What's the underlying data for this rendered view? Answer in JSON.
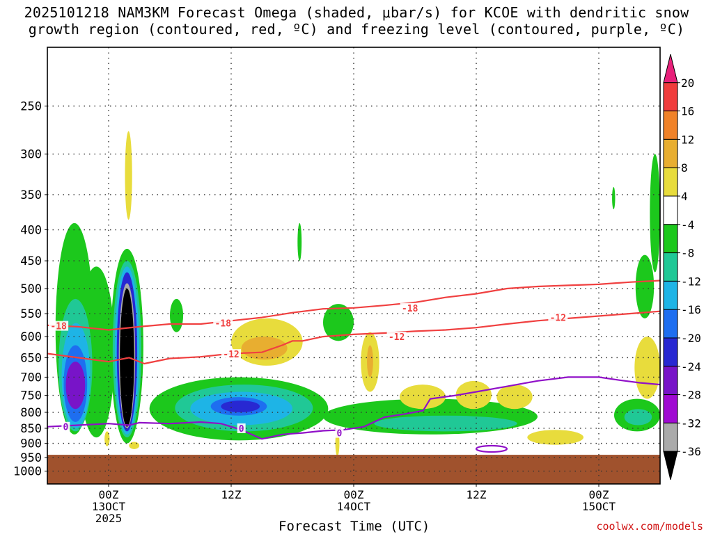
{
  "header": {
    "title_line1": "2025101218 NAM3KM Forecast Omega (shaded, μbar/s) for KCOE with dendritic snow",
    "title_line2": "growth region (contoured, red, ºC) and freezing level (contoured, purple, ºC)"
  },
  "footer": {
    "credit": "coolwx.com/models"
  },
  "chart_data": {
    "type": "heatmap",
    "title": "2025101218 NAM3KM Forecast Omega (shaded, μbar/s) for KCOE with dendritic snow growth region (contoured, red, ºC) and freezing level (contoured, purple, ºC)",
    "xlabel": "Forecast Time (UTC)",
    "ylabel": "",
    "x_unit": "hours from 2025-10-12 18Z",
    "xlim": [
      0,
      60
    ],
    "x_ticks": [
      {
        "x": 6,
        "label": "00Z",
        "sub1": "13OCT",
        "sub2": "2025"
      },
      {
        "x": 18,
        "label": "12Z",
        "sub1": "",
        "sub2": ""
      },
      {
        "x": 30,
        "label": "00Z",
        "sub1": "14OCT",
        "sub2": ""
      },
      {
        "x": 42,
        "label": "12Z",
        "sub1": "",
        "sub2": ""
      },
      {
        "x": 54,
        "label": "00Z",
        "sub1": "15OCT",
        "sub2": ""
      }
    ],
    "y_unit": "hPa",
    "y_scale": "log",
    "ylim": [
      1050,
      200
    ],
    "y_ticks": [
      250,
      300,
      350,
      400,
      450,
      500,
      550,
      600,
      650,
      700,
      750,
      800,
      850,
      900,
      950,
      1000
    ],
    "grid": true,
    "colorbar": {
      "labels": [
        "20",
        "16",
        "12",
        "8",
        "4",
        "-4",
        "-8",
        "-12",
        "-16",
        "-20",
        "-24",
        "-28",
        "-32",
        "-36"
      ],
      "colors": [
        "#e8207a",
        "#f03c3c",
        "#f08228",
        "#e8ae30",
        "#e8dc3c",
        "#ffffff",
        "#1cc81c",
        "#20c896",
        "#1eb4e6",
        "#1e6ef0",
        "#2828d2",
        "#7814c8",
        "#a00ad2",
        "#aaaaaa",
        "#000000"
      ]
    },
    "ground": {
      "color": "#a0522d",
      "top_hpa": 940
    },
    "omega_regions": [
      {
        "level": "-4",
        "color": "#1cc81c",
        "x": [
          0.8,
          4.5
        ],
        "p": [
          390,
          870
        ]
      },
      {
        "level": "-4",
        "color": "#1cc81c",
        "x": [
          3.0,
          6.6
        ],
        "p": [
          460,
          880
        ]
      },
      {
        "level": "-4",
        "color": "#1cc81c",
        "x": [
          6.2,
          9.4
        ],
        "p": [
          430,
          900
        ]
      },
      {
        "level": "-8",
        "color": "#20c896",
        "x": [
          1.1,
          4.4
        ],
        "p": [
          520,
          860
        ]
      },
      {
        "level": "-12",
        "color": "#1eb4e6",
        "x": [
          1.4,
          4.2
        ],
        "p": [
          570,
          850
        ]
      },
      {
        "level": "-20",
        "color": "#1e6ef0",
        "x": [
          1.6,
          3.9
        ],
        "p": [
          620,
          830
        ]
      },
      {
        "level": "-28",
        "color": "#7814c8",
        "x": [
          1.8,
          3.7
        ],
        "p": [
          660,
          790
        ]
      },
      {
        "level": "-8",
        "color": "#20c896",
        "x": [
          6.4,
          9.2
        ],
        "p": [
          450,
          880
        ]
      },
      {
        "level": "-12",
        "color": "#1eb4e6",
        "x": [
          6.6,
          9.0
        ],
        "p": [
          460,
          870
        ]
      },
      {
        "level": "-24",
        "color": "#2828d2",
        "x": [
          6.8,
          8.8
        ],
        "p": [
          470,
          860
        ]
      },
      {
        "level": "-32",
        "color": "#aaaaaa",
        "x": [
          7.0,
          8.6
        ],
        "p": [
          490,
          850
        ]
      },
      {
        "level": "-36",
        "color": "#000000",
        "x": [
          7.1,
          8.5
        ],
        "p": [
          500,
          845
        ]
      },
      {
        "level": "-4",
        "color": "#1cc81c",
        "x": [
          12.0,
          13.3
        ],
        "p": [
          520,
          590
        ]
      },
      {
        "level": "-4",
        "color": "#1cc81c",
        "x": [
          10.0,
          27.5
        ],
        "p": [
          700,
          890
        ]
      },
      {
        "level": "-8",
        "color": "#20c896",
        "x": [
          12.5,
          26.0
        ],
        "p": [
          720,
          860
        ]
      },
      {
        "level": "-12",
        "color": "#1eb4e6",
        "x": [
          14.0,
          24.0
        ],
        "p": [
          740,
          840
        ]
      },
      {
        "level": "-16",
        "color": "#1e6ef0",
        "x": [
          16.0,
          21.5
        ],
        "p": [
          755,
          810
        ]
      },
      {
        "level": "-20",
        "color": "#2828d2",
        "x": [
          17.0,
          20.8
        ],
        "p": [
          765,
          800
        ]
      },
      {
        "level": "-4",
        "color": "#1cc81c",
        "x": [
          27.0,
          48.0
        ],
        "p": [
          760,
          870
        ]
      },
      {
        "level": "-8",
        "color": "#20c896",
        "x": [
          32.0,
          46.0
        ],
        "p": [
          810,
          860
        ]
      },
      {
        "level": "-4",
        "color": "#1cc81c",
        "x": [
          27.0,
          30.0
        ],
        "p": [
          530,
          610
        ]
      },
      {
        "level": "-4",
        "color": "#1cc81c",
        "x": [
          24.5,
          24.9
        ],
        "p": [
          390,
          450
        ]
      },
      {
        "level": "-4",
        "color": "#1cc81c",
        "x": [
          55.5,
          60.0
        ],
        "p": [
          760,
          860
        ]
      },
      {
        "level": "-8",
        "color": "#20c896",
        "x": [
          56.5,
          59.2
        ],
        "p": [
          790,
          840
        ]
      },
      {
        "level": "-4",
        "color": "#1cc81c",
        "x": [
          59.0,
          60.0
        ],
        "p": [
          300,
          470
        ]
      },
      {
        "level": "-4",
        "color": "#1cc81c",
        "x": [
          57.6,
          59.4
        ],
        "p": [
          440,
          560
        ]
      },
      {
        "level": "-4",
        "color": "#1cc81c",
        "x": [
          55.3,
          55.6
        ],
        "p": [
          340,
          370
        ]
      },
      {
        "level": "4",
        "color": "#e8dc3c",
        "x": [
          7.6,
          8.3
        ],
        "p": [
          275,
          385
        ]
      },
      {
        "level": "4",
        "color": "#e8dc3c",
        "x": [
          18.0,
          25.0
        ],
        "p": [
          560,
          670
        ]
      },
      {
        "level": "8",
        "color": "#e8ae30",
        "x": [
          19.0,
          23.5
        ],
        "p": [
          600,
          655
        ]
      },
      {
        "level": "4",
        "color": "#e8dc3c",
        "x": [
          30.7,
          32.5
        ],
        "p": [
          590,
          740
        ]
      },
      {
        "level": "8",
        "color": "#e8ae30",
        "x": [
          31.3,
          31.9
        ],
        "p": [
          620,
          700
        ]
      },
      {
        "level": "4",
        "color": "#e8dc3c",
        "x": [
          34.5,
          39.0
        ],
        "p": [
          720,
          790
        ]
      },
      {
        "level": "4",
        "color": "#e8dc3c",
        "x": [
          40.0,
          43.5
        ],
        "p": [
          710,
          790
        ]
      },
      {
        "level": "4",
        "color": "#e8dc3c",
        "x": [
          44.0,
          47.5
        ],
        "p": [
          720,
          790
        ]
      },
      {
        "level": "4",
        "color": "#e8dc3c",
        "x": [
          47.0,
          52.5
        ],
        "p": [
          855,
          905
        ]
      },
      {
        "level": "4",
        "color": "#e8dc3c",
        "x": [
          57.5,
          60.0
        ],
        "p": [
          600,
          760
        ]
      },
      {
        "level": "4",
        "color": "#e8dc3c",
        "x": [
          5.6,
          6.1
        ],
        "p": [
          860,
          910
        ]
      },
      {
        "level": "4",
        "color": "#e8dc3c",
        "x": [
          8.0,
          9.0
        ],
        "p": [
          895,
          920
        ]
      },
      {
        "level": "4",
        "color": "#e8dc3c",
        "x": [
          28.2,
          28.6
        ],
        "p": [
          855,
          945
        ]
      }
    ],
    "series": [
      {
        "name": "-18",
        "color": "#f04040",
        "x": [
          0,
          3,
          6,
          9,
          12,
          15,
          18,
          21,
          24,
          27,
          30,
          33,
          36,
          39,
          42,
          45,
          48,
          51,
          54,
          57,
          60
        ],
        "y": [
          575,
          578,
          585,
          578,
          572,
          572,
          565,
          558,
          548,
          540,
          538,
          533,
          527,
          517,
          510,
          500,
          496,
          494,
          492,
          488,
          485
        ]
      },
      {
        "name": "-12",
        "color": "#f04040",
        "x": [
          0,
          3,
          6,
          8,
          9.5,
          12,
          15,
          18,
          21,
          23,
          24,
          25,
          27,
          30,
          33,
          36,
          39,
          42,
          45,
          48,
          51,
          54,
          57,
          60
        ],
        "y": [
          640,
          650,
          660,
          650,
          665,
          652,
          648,
          640,
          637,
          620,
          610,
          610,
          600,
          595,
          592,
          588,
          585,
          580,
          572,
          565,
          560,
          555,
          550,
          545
        ]
      },
      {
        "name": "0",
        "color": "#9010c8",
        "x": [
          0,
          3,
          6,
          8,
          9,
          12,
          15,
          17,
          19,
          21,
          23,
          25,
          27,
          29,
          31,
          33,
          35,
          36.8,
          37.5,
          40,
          42,
          45,
          48,
          51,
          54,
          56,
          58,
          60
        ],
        "y": [
          845,
          840,
          835,
          840,
          832,
          835,
          830,
          835,
          855,
          885,
          870,
          865,
          858,
          855,
          845,
          815,
          805,
          795,
          760,
          750,
          740,
          725,
          710,
          700,
          700,
          708,
          715,
          720
        ]
      }
    ],
    "extra_contours": [
      {
        "name": "0",
        "color": "#9010c8",
        "x": [
          42.0,
          45.0
        ],
        "p": [
          908,
          930
        ]
      }
    ],
    "line_labels": [
      {
        "text": "-18",
        "color": "#f04040",
        "x": 1.1,
        "p": 576
      },
      {
        "text": "-18",
        "color": "#f04040",
        "x": 17.2,
        "p": 570
      },
      {
        "text": "-18",
        "color": "#f04040",
        "x": 35.5,
        "p": 538
      },
      {
        "text": "-12",
        "color": "#f04040",
        "x": 18.0,
        "p": 641
      },
      {
        "text": "-12",
        "color": "#f04040",
        "x": 34.2,
        "p": 600
      },
      {
        "text": "-12",
        "color": "#f04040",
        "x": 50.0,
        "p": 558
      },
      {
        "text": "0",
        "color": "#9010c8",
        "x": 1.8,
        "p": 845
      },
      {
        "text": "0",
        "color": "#9010c8",
        "x": 19.0,
        "p": 850
      },
      {
        "text": "0",
        "color": "#9010c8",
        "x": 28.6,
        "p": 865
      }
    ]
  }
}
